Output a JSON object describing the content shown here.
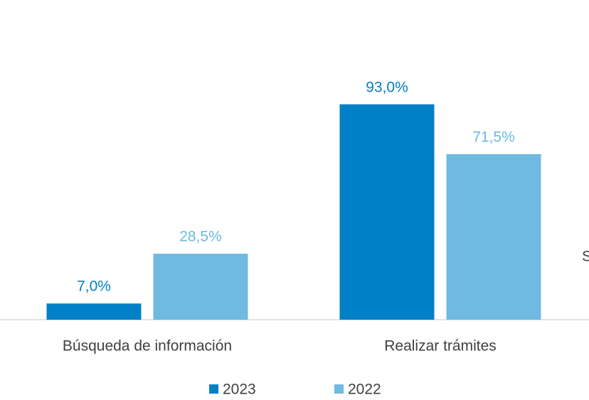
{
  "chart_data": {
    "type": "bar",
    "categories": [
      "Búsqueda de información",
      "Realizar trámites"
    ],
    "series": [
      {
        "name": "2023",
        "color": "#0080c6",
        "values": [
          7.0,
          93.0
        ],
        "value_labels": [
          "7,0%",
          "93,0%"
        ]
      },
      {
        "name": "2022",
        "color": "#70b9e0",
        "values": [
          28.5,
          71.5
        ],
        "value_labels": [
          "28,5%",
          "71,5%"
        ]
      }
    ],
    "ylim": [
      0,
      100
    ],
    "annotation": "S",
    "legend": "bottom"
  }
}
